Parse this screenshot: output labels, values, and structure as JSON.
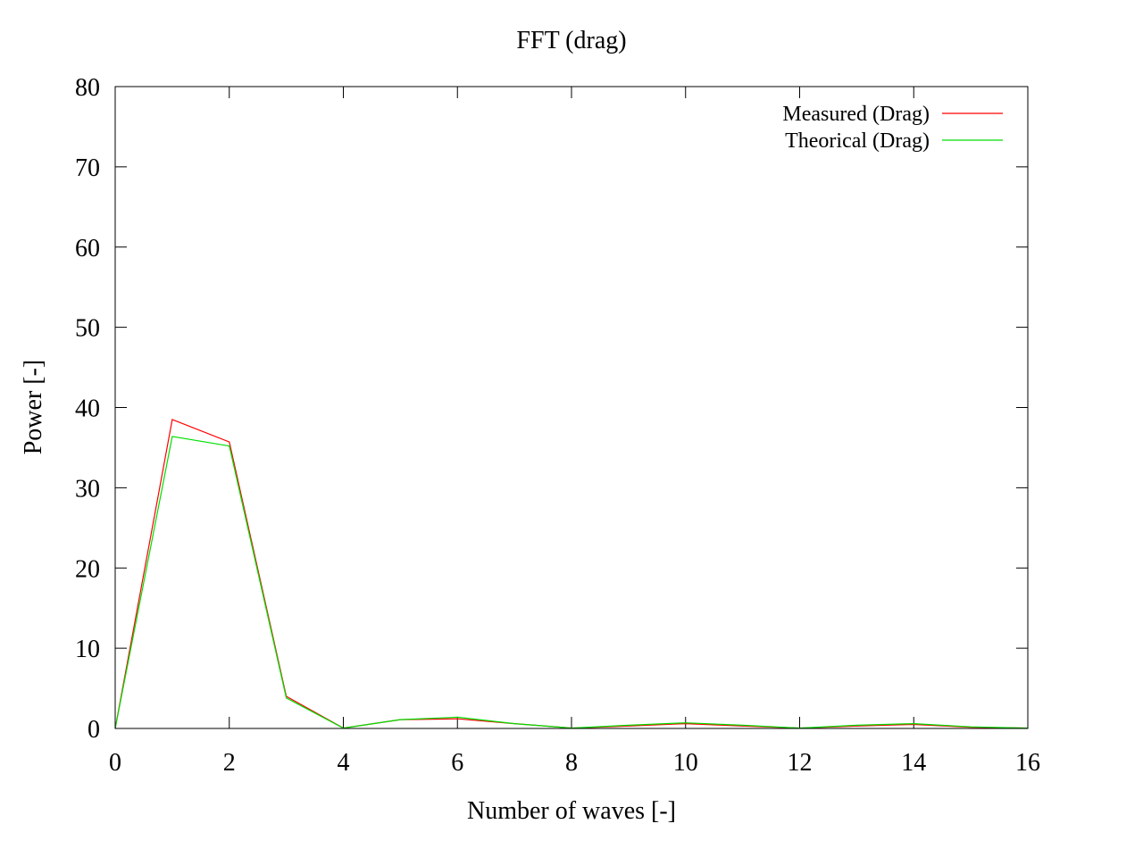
{
  "chart_data": {
    "type": "line",
    "title": "FFT (drag)",
    "xlabel": "Number of waves [-]",
    "ylabel": "Power [-]",
    "xlim": [
      0,
      16
    ],
    "ylim": [
      0,
      80
    ],
    "xticks": [
      0,
      2,
      4,
      6,
      8,
      10,
      12,
      14,
      16
    ],
    "yticks": [
      0,
      10,
      20,
      30,
      40,
      50,
      60,
      70,
      80
    ],
    "grid": false,
    "legend_position": "top-right",
    "x": [
      0,
      1,
      2,
      3,
      4,
      5,
      6,
      7,
      8,
      9,
      10,
      11,
      12,
      13,
      14,
      15,
      16
    ],
    "series": [
      {
        "name": "Measured (Drag)",
        "color": "#ff0000",
        "values": [
          0,
          38.5,
          35.7,
          4.0,
          0.05,
          1.1,
          1.2,
          0.6,
          0.05,
          0.3,
          0.6,
          0.3,
          0.05,
          0.3,
          0.5,
          0.15,
          0.05
        ]
      },
      {
        "name": "Theorical (Drag)",
        "color": "#00dd00",
        "values": [
          0,
          36.4,
          35.2,
          3.8,
          0.05,
          1.1,
          1.4,
          0.6,
          0.05,
          0.4,
          0.7,
          0.4,
          0.05,
          0.4,
          0.6,
          0.2,
          0.05
        ]
      }
    ]
  }
}
